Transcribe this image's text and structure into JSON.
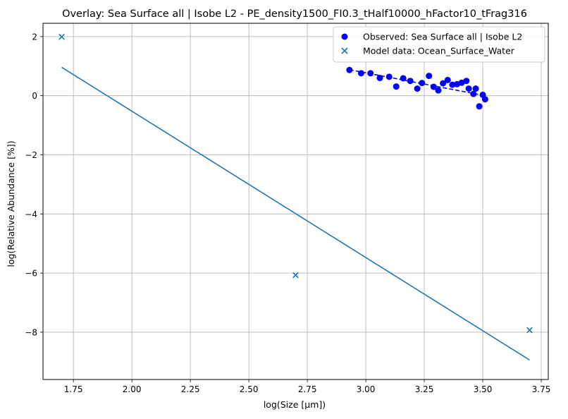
{
  "chart_data": {
    "type": "scatter",
    "title": "Overlay: Sea Surface all | Isobe L2 - PE_density1500_FI0.3_tHalf10000_hFactor10_tFrag316",
    "xlabel": "log(Size [µm])",
    "ylabel": "log(Relative Abundance [%])",
    "xlim": [
      1.62,
      3.78
    ],
    "ylim": [
      -9.6,
      2.45
    ],
    "xticks": [
      1.75,
      2.0,
      2.25,
      2.5,
      2.75,
      3.0,
      3.25,
      3.5,
      3.75
    ],
    "xtick_labels": [
      "1.75",
      "2.00",
      "2.25",
      "2.50",
      "2.75",
      "3.00",
      "3.25",
      "3.50",
      "3.75"
    ],
    "yticks": [
      -8,
      -6,
      -4,
      -2,
      0,
      2
    ],
    "ytick_labels": [
      "−8",
      "−6",
      "−4",
      "−2",
      "0",
      "2"
    ],
    "grid": true,
    "legend_position": "upper right",
    "legend": [
      {
        "label": "Observed: Sea Surface all | Isobe L2",
        "marker": "circle",
        "color": "#0000ff"
      },
      {
        "label": "Model data: Ocean_Surface_Water",
        "marker": "x",
        "color": "#1f77b4"
      }
    ],
    "series": [
      {
        "name": "Observed: Sea Surface all | Isobe L2",
        "kind": "scatter",
        "marker": "circle",
        "color": "#0000ff",
        "x": [
          2.93,
          2.98,
          3.02,
          3.06,
          3.1,
          3.13,
          3.16,
          3.19,
          3.22,
          3.24,
          3.27,
          3.29,
          3.31,
          3.33,
          3.35,
          3.37,
          3.39,
          3.41,
          3.43,
          3.44,
          3.46,
          3.47,
          3.485,
          3.5,
          3.51
        ],
        "y": [
          0.87,
          0.76,
          0.76,
          0.6,
          0.64,
          0.31,
          0.59,
          0.5,
          0.24,
          0.43,
          0.67,
          0.3,
          0.18,
          0.42,
          0.53,
          0.37,
          0.39,
          0.44,
          0.5,
          0.24,
          0.06,
          0.24,
          -0.36,
          0.03,
          -0.12
        ]
      },
      {
        "name": "Observed fit",
        "kind": "line",
        "dashed": true,
        "color": "#0000ff",
        "x": [
          2.93,
          3.51
        ],
        "y": [
          0.88,
          0.0
        ]
      },
      {
        "name": "Model data: Ocean_Surface_Water",
        "kind": "scatter",
        "marker": "x",
        "color": "#1f77b4",
        "x": [
          1.7,
          2.7,
          3.7
        ],
        "y": [
          1.99,
          -6.07,
          -7.93
        ]
      },
      {
        "name": "Model fit",
        "kind": "line",
        "color": "#1f77b4",
        "x": [
          1.7,
          3.7
        ],
        "y": [
          0.96,
          -8.94
        ]
      }
    ]
  }
}
